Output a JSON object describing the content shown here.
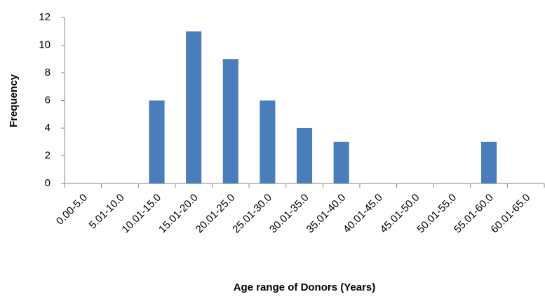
{
  "chart_data": {
    "type": "bar",
    "x_label": "Age range of Donors (Years)",
    "y_label": "Frequency",
    "categories": [
      "0.00-5.0",
      "5.01-10.0",
      "10.01-15.0",
      "15.01-20.0",
      "20.01-25.0",
      "25.01-30.0",
      "30.01-35.0",
      "35.01-40.0",
      "40.01-45.0",
      "45.01-50.0",
      "50.01-55.0",
      "55.01-60.0",
      "60.01-65.0"
    ],
    "values": [
      0,
      0,
      6,
      11,
      9,
      6,
      4,
      3,
      0,
      0,
      0,
      3,
      0
    ],
    "color": "#4a7ebb",
    "ylim": [
      0,
      12
    ],
    "yticks": [
      0,
      2,
      4,
      6,
      8,
      10,
      12
    ],
    "grid": false
  }
}
